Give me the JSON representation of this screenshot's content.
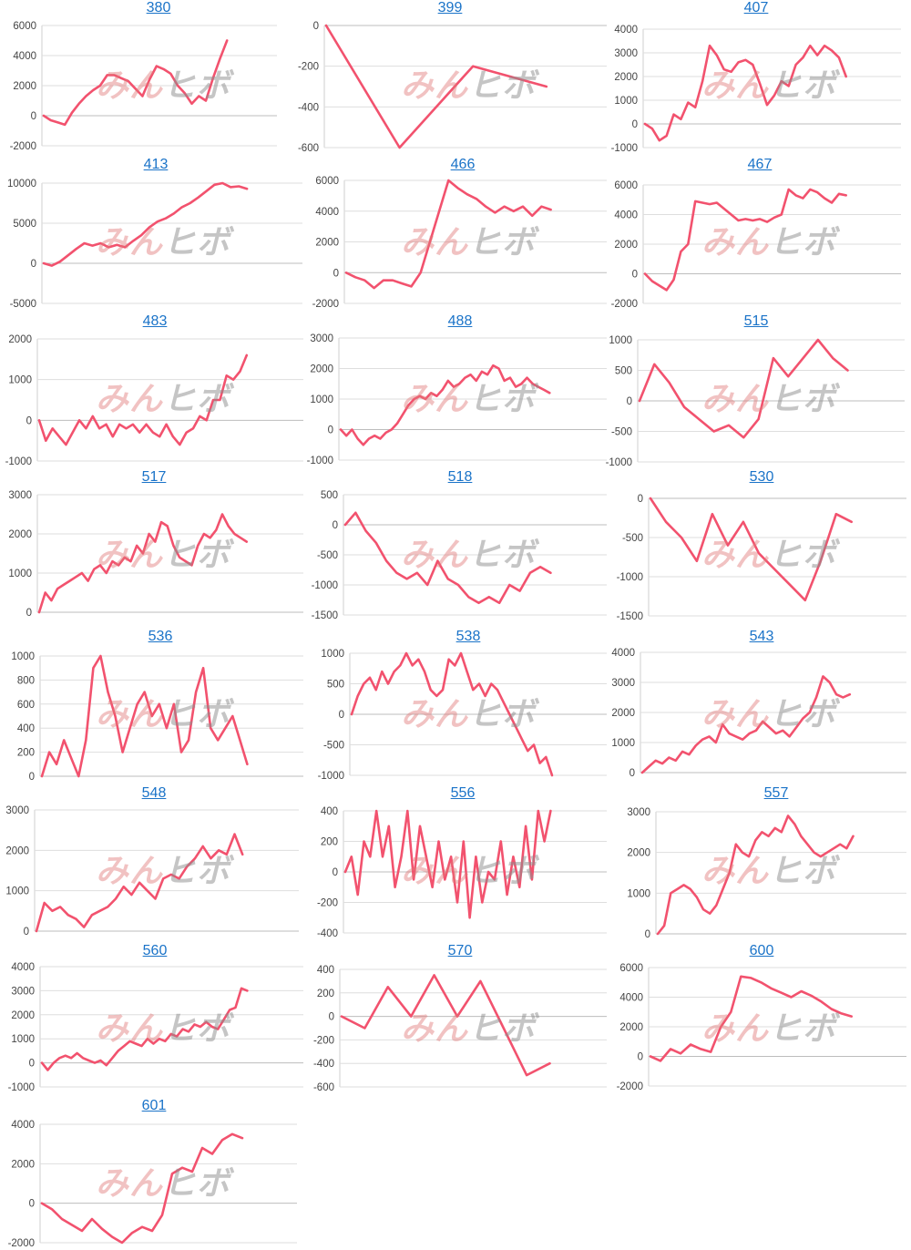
{
  "colors": {
    "series": "#f2526e",
    "link": "#1a73c8",
    "grid": "#dedede"
  },
  "watermark": {
    "part1": "みん",
    "part2": "ヒボ"
  },
  "chart_data": [
    {
      "type": "line",
      "title": "380",
      "ylim": [
        -2000,
        6000
      ],
      "yticks": [
        6000,
        4000,
        2000,
        0,
        -2000
      ],
      "tick_labels": [
        "6000",
        "4000",
        "2000",
        "0",
        "-2000"
      ],
      "series": [
        {
          "values": [
            0,
            -300,
            -450,
            -600,
            200,
            800,
            1300,
            1700,
            2000,
            2700,
            2700,
            2500,
            2300,
            1800,
            1300,
            2400,
            3300,
            3100,
            2800,
            2000,
            1500,
            800,
            1300,
            1000,
            2500,
            3800,
            5000
          ]
        }
      ]
    },
    {
      "type": "line",
      "title": "399",
      "ylim": [
        -600,
        0
      ],
      "yticks": [
        0,
        -200,
        -400,
        -600
      ],
      "tick_labels": [
        "0",
        "-200",
        "-400",
        "-600"
      ],
      "series": [
        {
          "values": [
            0,
            -600,
            -200,
            -300
          ]
        }
      ]
    },
    {
      "type": "line",
      "title": "407",
      "ylim": [
        -1000,
        4000
      ],
      "yticks": [
        4000,
        3000,
        2000,
        1000,
        0,
        -1000
      ],
      "tick_labels": [
        "4000",
        "3000",
        "2000",
        "1000",
        "0",
        "-1000"
      ],
      "series": [
        {
          "values": [
            0,
            -200,
            -700,
            -500,
            400,
            200,
            900,
            700,
            1800,
            3300,
            2900,
            2300,
            2200,
            2600,
            2700,
            2500,
            1700,
            800,
            1200,
            1800,
            1600,
            2500,
            2800,
            3300,
            2900,
            3300,
            3100,
            2800,
            2000
          ]
        }
      ]
    },
    {
      "type": "line",
      "title": "413",
      "ylim": [
        -5000,
        10000
      ],
      "yticks": [
        10000,
        5000,
        0,
        -5000
      ],
      "tick_labels": [
        "10000",
        "5000",
        "0",
        "-5000"
      ],
      "series": [
        {
          "values": [
            0,
            -300,
            200,
            1000,
            1800,
            2500,
            2200,
            2500,
            2000,
            2300,
            2000,
            2800,
            3500,
            4500,
            5200,
            5600,
            6200,
            7000,
            7500,
            8200,
            9000,
            9800,
            10000,
            9500,
            9600,
            9300
          ]
        }
      ]
    },
    {
      "type": "line",
      "title": "466",
      "ylim": [
        -2000,
        6000
      ],
      "yticks": [
        6000,
        4000,
        2000,
        0,
        -2000
      ],
      "tick_labels": [
        "6000",
        "4000",
        "2000",
        "0",
        "-2000"
      ],
      "series": [
        {
          "values": [
            0,
            -300,
            -500,
            -1000,
            -500,
            -500,
            -700,
            -900,
            0,
            2000,
            4000,
            6000,
            5500,
            5100,
            4800,
            4300,
            3900,
            4300,
            4000,
            4300,
            3700,
            4300,
            4100
          ]
        }
      ]
    },
    {
      "type": "line",
      "title": "467",
      "ylim": [
        -2000,
        6000
      ],
      "yticks": [
        6000,
        4000,
        2000,
        0,
        -2000
      ],
      "tick_labels": [
        "6000",
        "4000",
        "2000",
        "0",
        "-2000"
      ],
      "series": [
        {
          "values": [
            0,
            -500,
            -800,
            -1100,
            -400,
            1500,
            2000,
            4900,
            4800,
            4700,
            4800,
            4400,
            4000,
            3600,
            3700,
            3600,
            3700,
            3500,
            3800,
            4000,
            5700,
            5300,
            5100,
            5700,
            5500,
            5100,
            4800,
            5400,
            5300
          ]
        }
      ]
    },
    {
      "type": "line",
      "title": "483",
      "ylim": [
        -1000,
        2000
      ],
      "yticks": [
        2000,
        1000,
        0,
        -1000
      ],
      "tick_labels": [
        "2000",
        "1000",
        "0",
        "-1000"
      ],
      "series": [
        {
          "values": [
            0,
            -500,
            -200,
            -400,
            -600,
            -300,
            0,
            -200,
            100,
            -200,
            -100,
            -400,
            -100,
            -200,
            -100,
            -300,
            -100,
            -300,
            -400,
            -100,
            -400,
            -600,
            -300,
            -200,
            100,
            0,
            500,
            500,
            1100,
            1000,
            1200,
            1600
          ]
        }
      ]
    },
    {
      "type": "line",
      "title": "488",
      "ylim": [
        -1000,
        3000
      ],
      "yticks": [
        3000,
        2000,
        1000,
        0,
        -1000
      ],
      "tick_labels": [
        "3000",
        "2000",
        "1000",
        "0",
        "-1000"
      ],
      "series": [
        {
          "values": [
            0,
            -200,
            0,
            -300,
            -500,
            -300,
            -200,
            -300,
            -100,
            0,
            200,
            500,
            800,
            1000,
            1100,
            1000,
            1200,
            1100,
            1300,
            1600,
            1400,
            1500,
            1700,
            1800,
            1600,
            1900,
            1800,
            2100,
            2000,
            1600,
            1700,
            1400,
            1500,
            1700,
            1500,
            1400,
            1300,
            1200
          ]
        }
      ]
    },
    {
      "type": "line",
      "title": "515",
      "ylim": [
        -1000,
        1000
      ],
      "yticks": [
        1000,
        500,
        0,
        -500,
        -1000
      ],
      "tick_labels": [
        "1000",
        "500",
        "0",
        "-500",
        "-1000"
      ],
      "series": [
        {
          "values": [
            0,
            600,
            300,
            -100,
            -300,
            -500,
            -400,
            -600,
            -300,
            700,
            400,
            700,
            1000,
            700,
            500
          ]
        }
      ]
    },
    {
      "type": "line",
      "title": "517",
      "ylim": [
        0,
        3000
      ],
      "yticks": [
        3000,
        2000,
        1000,
        0
      ],
      "tick_labels": [
        "3000",
        "2000",
        "1000",
        "0"
      ],
      "series": [
        {
          "values": [
            0,
            500,
            300,
            600,
            700,
            800,
            900,
            1000,
            800,
            1100,
            1200,
            1000,
            1300,
            1200,
            1400,
            1300,
            1700,
            1500,
            2000,
            1800,
            2300,
            2200,
            1700,
            1400,
            1300,
            1200,
            1700,
            2000,
            1900,
            2100,
            2500,
            2200,
            2000,
            1900,
            1800
          ]
        }
      ]
    },
    {
      "type": "line",
      "title": "518",
      "ylim": [
        -1500,
        500
      ],
      "yticks": [
        500,
        0,
        -500,
        -1000,
        -1500
      ],
      "tick_labels": [
        "500",
        "0",
        "-500",
        "-1000",
        "-1500"
      ],
      "series": [
        {
          "values": [
            0,
            200,
            -100,
            -300,
            -600,
            -800,
            -900,
            -800,
            -1000,
            -600,
            -900,
            -1000,
            -1200,
            -1300,
            -1200,
            -1300,
            -1000,
            -1100,
            -800,
            -700,
            -800
          ]
        }
      ]
    },
    {
      "type": "line",
      "title": "530",
      "ylim": [
        -1500,
        0
      ],
      "yticks": [
        0,
        -500,
        -1000,
        -1500
      ],
      "tick_labels": [
        "0",
        "-500",
        "-1000",
        "-1500"
      ],
      "series": [
        {
          "values": [
            0,
            -300,
            -500,
            -800,
            -200,
            -600,
            -300,
            -700,
            -900,
            -1100,
            -1300,
            -800,
            -200,
            -300
          ]
        }
      ]
    },
    {
      "type": "line",
      "title": "536",
      "ylim": [
        0,
        1000
      ],
      "yticks": [
        1000,
        800,
        600,
        400,
        200,
        0
      ],
      "tick_labels": [
        "1000",
        "800",
        "600",
        "400",
        "200",
        "0"
      ],
      "series": [
        {
          "values": [
            0,
            200,
            100,
            300,
            150,
            0,
            300,
            900,
            1000,
            700,
            500,
            200,
            400,
            600,
            700,
            500,
            600,
            400,
            600,
            200,
            300,
            700,
            900,
            400,
            300,
            400,
            500,
            300,
            100
          ]
        }
      ]
    },
    {
      "type": "line",
      "title": "538",
      "ylim": [
        -1000,
        1000
      ],
      "yticks": [
        1000,
        500,
        0,
        -500,
        -1000
      ],
      "tick_labels": [
        "1000",
        "500",
        "0",
        "-500",
        "-1000"
      ],
      "series": [
        {
          "values": [
            0,
            300,
            500,
            600,
            400,
            700,
            500,
            700,
            800,
            1000,
            800,
            900,
            700,
            400,
            300,
            400,
            900,
            800,
            1000,
            700,
            400,
            500,
            300,
            500,
            400,
            200,
            0,
            -200,
            -400,
            -600,
            -500,
            -800,
            -700,
            -1000
          ]
        }
      ]
    },
    {
      "type": "line",
      "title": "543",
      "ylim": [
        0,
        4000
      ],
      "yticks": [
        4000,
        3000,
        2000,
        1000,
        0
      ],
      "tick_labels": [
        "4000",
        "3000",
        "2000",
        "1000",
        "0"
      ],
      "series": [
        {
          "values": [
            0,
            200,
            400,
            300,
            500,
            400,
            700,
            600,
            900,
            1100,
            1200,
            1000,
            1600,
            1300,
            1200,
            1100,
            1300,
            1400,
            1700,
            1500,
            1300,
            1400,
            1200,
            1500,
            1800,
            2000,
            2500,
            3200,
            3000,
            2600,
            2500,
            2600
          ]
        }
      ]
    },
    {
      "type": "line",
      "title": "548",
      "ylim": [
        0,
        3000
      ],
      "yticks": [
        3000,
        2000,
        1000,
        0
      ],
      "tick_labels": [
        "3000",
        "2000",
        "1000",
        "0"
      ],
      "series": [
        {
          "values": [
            0,
            700,
            500,
            600,
            400,
            300,
            100,
            400,
            500,
            600,
            800,
            1100,
            900,
            1200,
            1000,
            800,
            1300,
            1400,
            1300,
            1600,
            1800,
            2100,
            1800,
            2000,
            1900,
            2400,
            1900
          ]
        }
      ]
    },
    {
      "type": "line",
      "title": "556",
      "ylim": [
        -400,
        400
      ],
      "yticks": [
        400,
        200,
        0,
        -200,
        -400
      ],
      "tick_labels": [
        "400",
        "200",
        "0",
        "-200",
        "-400"
      ],
      "series": [
        {
          "values": [
            0,
            100,
            -150,
            200,
            100,
            400,
            100,
            300,
            -100,
            100,
            400,
            -50,
            300,
            100,
            -100,
            200,
            -50,
            100,
            -200,
            200,
            -300,
            100,
            -200,
            0,
            -50,
            200,
            -150,
            100,
            -100,
            300,
            -50,
            400,
            200,
            400
          ]
        }
      ]
    },
    {
      "type": "line",
      "title": "557",
      "ylim": [
        0,
        3000
      ],
      "yticks": [
        3000,
        2000,
        1000,
        0
      ],
      "tick_labels": [
        "3000",
        "2000",
        "1000",
        "0"
      ],
      "series": [
        {
          "values": [
            0,
            200,
            1000,
            1100,
            1200,
            1100,
            900,
            600,
            500,
            700,
            1100,
            1500,
            2200,
            2000,
            1900,
            2300,
            2500,
            2400,
            2600,
            2500,
            2900,
            2700,
            2400,
            2200,
            2000,
            1900,
            2000,
            2100,
            2200,
            2100,
            2400
          ]
        }
      ]
    },
    {
      "type": "line",
      "title": "560",
      "ylim": [
        -1000,
        4000
      ],
      "yticks": [
        4000,
        3000,
        2000,
        1000,
        0,
        -1000
      ],
      "tick_labels": [
        "4000",
        "3000",
        "2000",
        "1000",
        "0",
        "-1000"
      ],
      "series": [
        {
          "values": [
            0,
            -300,
            0,
            200,
            300,
            200,
            400,
            200,
            100,
            0,
            100,
            -100,
            200,
            500,
            700,
            900,
            800,
            700,
            1000,
            800,
            1000,
            900,
            1200,
            1100,
            1400,
            1300,
            1600,
            1500,
            1700,
            1500,
            1400,
            1800,
            2200,
            2300,
            3100,
            3000
          ]
        }
      ]
    },
    {
      "type": "line",
      "title": "570",
      "ylim": [
        -600,
        400
      ],
      "yticks": [
        400,
        200,
        0,
        -200,
        -400,
        -600
      ],
      "tick_labels": [
        "400",
        "200",
        "0",
        "-200",
        "-400",
        "-600"
      ],
      "series": [
        {
          "values": [
            0,
            -100,
            250,
            0,
            350,
            0,
            300,
            -100,
            -500,
            -400
          ]
        }
      ]
    },
    {
      "type": "line",
      "title": "600",
      "ylim": [
        -2000,
        6000
      ],
      "yticks": [
        6000,
        4000,
        2000,
        0,
        -2000
      ],
      "tick_labels": [
        "6000",
        "4000",
        "2000",
        "0",
        "-2000"
      ],
      "series": [
        {
          "values": [
            0,
            -300,
            500,
            200,
            800,
            500,
            300,
            2000,
            3000,
            5400,
            5300,
            5000,
            4600,
            4300,
            4000,
            4400,
            4100,
            3700,
            3200,
            2900,
            2700
          ]
        }
      ]
    },
    {
      "type": "line",
      "title": "601",
      "ylim": [
        -2000,
        4000
      ],
      "yticks": [
        4000,
        2000,
        0,
        -2000
      ],
      "tick_labels": [
        "4000",
        "2000",
        "0",
        "-2000"
      ],
      "series": [
        {
          "values": [
            0,
            -300,
            -800,
            -1100,
            -1400,
            -800,
            -1300,
            -1700,
            -2000,
            -1500,
            -1200,
            -1400,
            -600,
            1500,
            1800,
            1600,
            2800,
            2500,
            3200,
            3500,
            3300
          ]
        }
      ]
    }
  ]
}
